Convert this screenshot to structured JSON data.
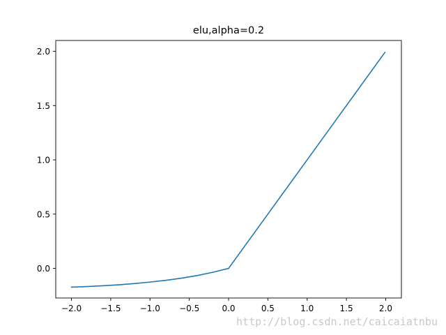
{
  "chart_data": {
    "type": "line",
    "title": "elu,alpha=0.2",
    "xlabel": "",
    "ylabel": "",
    "xlim": [
      -2.2,
      2.2
    ],
    "ylim": [
      -0.273,
      2.1
    ],
    "x_ticks": [
      -2.0,
      -1.5,
      -1.0,
      -0.5,
      0.0,
      0.5,
      1.0,
      1.5,
      2.0
    ],
    "x_tick_labels": [
      "−2.0",
      "−1.5",
      "−1.0",
      "−0.5",
      "0.0",
      "0.5",
      "1.0",
      "1.5",
      "2.0"
    ],
    "y_ticks": [
      0.0,
      0.5,
      1.0,
      1.5,
      2.0
    ],
    "y_tick_labels": [
      "0.0",
      "0.5",
      "1.0",
      "1.5",
      "2.0"
    ],
    "grid": false,
    "series": [
      {
        "color": "#1f77b4",
        "x": [
          -2.0,
          -1.8,
          -1.6,
          -1.4,
          -1.2,
          -1.0,
          -0.8,
          -0.6,
          -0.4,
          -0.2,
          0.0,
          0.5,
          1.0,
          1.5,
          1.99
        ],
        "y": [
          -0.173,
          -0.167,
          -0.16,
          -0.151,
          -0.14,
          -0.126,
          -0.11,
          -0.09,
          -0.066,
          -0.036,
          0.0,
          0.5,
          1.0,
          1.5,
          1.99
        ]
      }
    ]
  },
  "watermark": "http://blog.csdn.net/caicaiatnbu"
}
